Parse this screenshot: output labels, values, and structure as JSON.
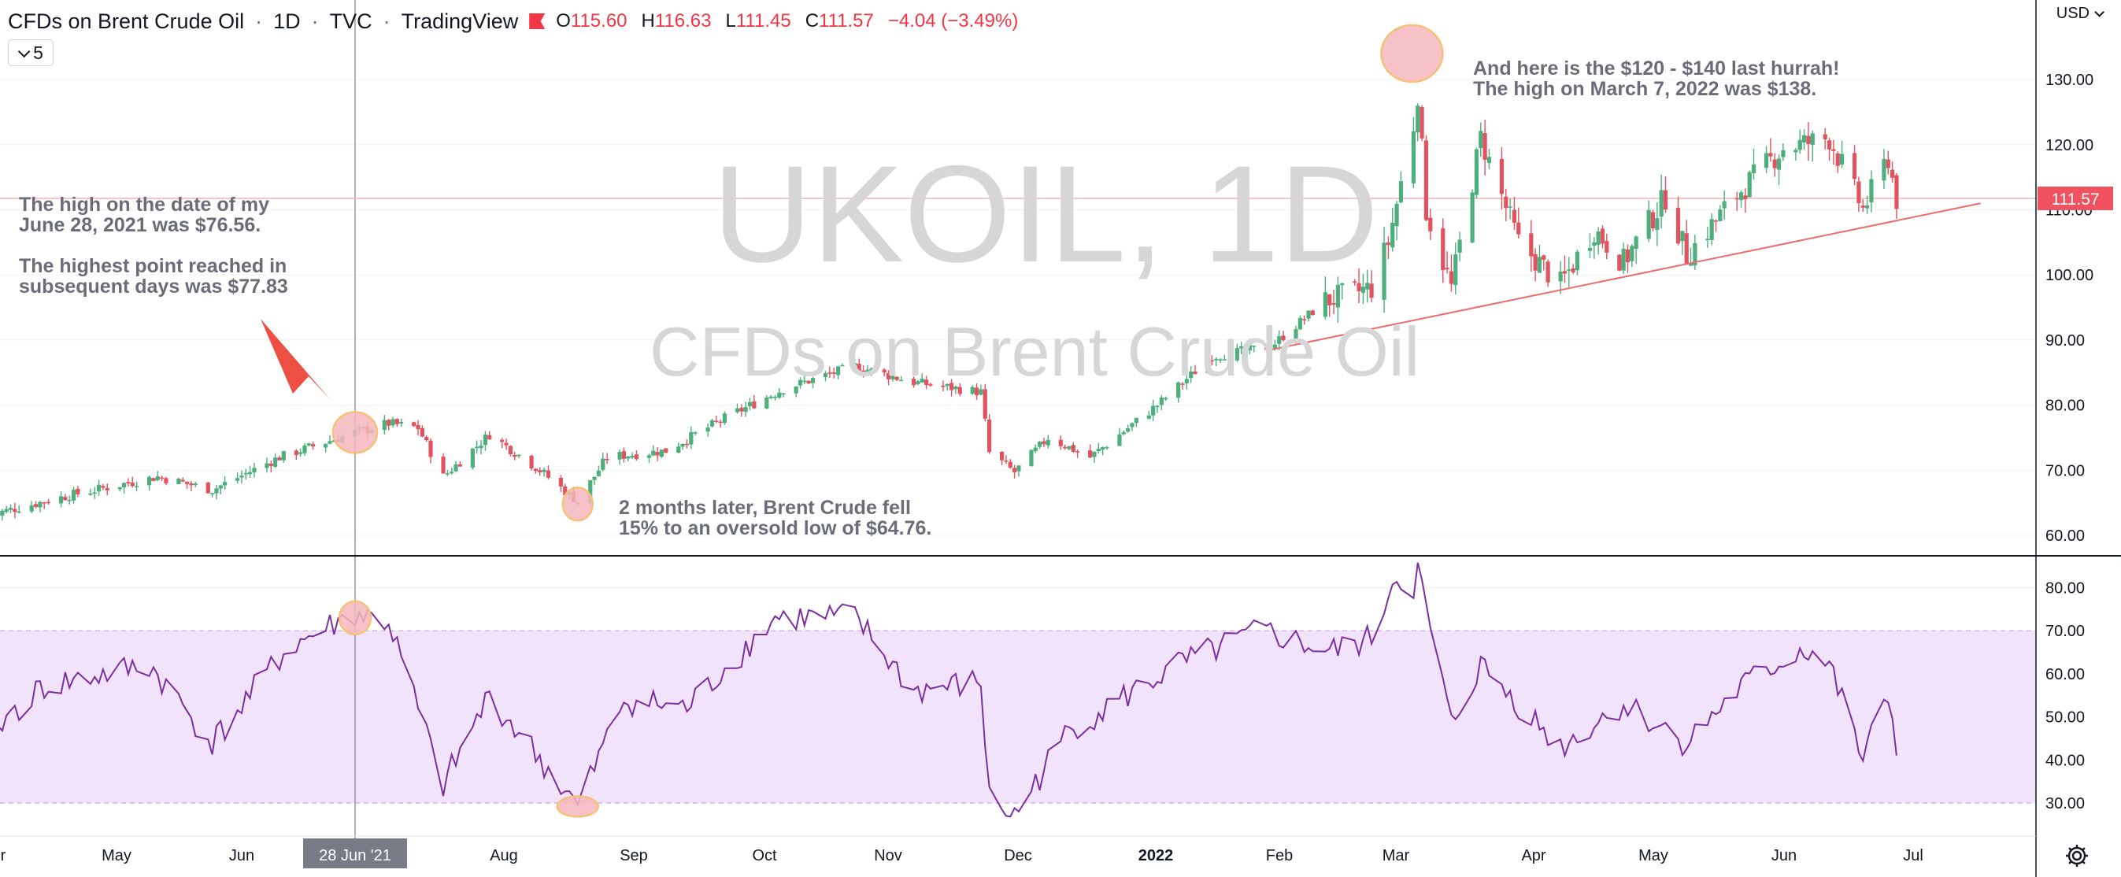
{
  "header": {
    "symbol_desc": "CFDs on Brent Crude Oil",
    "interval": "1D",
    "exchange": "TVC",
    "platform": "TradingView",
    "separator": "·",
    "ohlc": {
      "o_label": "O",
      "o": "115.60",
      "h_label": "H",
      "h": "116.63",
      "l_label": "L",
      "l": "111.45",
      "c_label": "C",
      "c": "111.57",
      "change": "−4.04 (−3.49%)"
    },
    "collapse_count": "5",
    "currency": "USD"
  },
  "watermark": {
    "ticker": "UKOIL, 1D",
    "description": "CFDs on Brent Crude Oil"
  },
  "annotations": {
    "june_high": "The high  on the date of my\nJune 28, 2021 was $76.56.\n\nThe highest point reached in\nsubsequent days was $77.83",
    "aug_low": "2 months later, Brent Crude fell\n15% to an oversold low of $64.76.",
    "march_high": "And here is the $120 - $140 last hurrah!\nThe high on March 7, 2022 was $138."
  },
  "colors": {
    "up": "#4caf7d",
    "down": "#e0535f",
    "rsi_line": "#7b2fa0",
    "rsi_band": "#f1e3fb",
    "trendline": "#ef6b6b",
    "highlight_fill": "#f4b6bd",
    "highlight_stroke": "#f6c177",
    "arrow": "#ee4f43",
    "price_tag": "#f0525f"
  },
  "chart_data": [
    {
      "type": "candlestick",
      "title": "CFDs on Brent Crude Oil · 1D · TVC",
      "y_axis": {
        "ticks": [
          "130.00",
          "120.00",
          "110.00",
          "100.00",
          "90.00",
          "80.00",
          "70.00",
          "60.00"
        ],
        "ylim": [
          57,
          140
        ]
      },
      "last_price": "111.57",
      "x_axis": {
        "ticks": [
          "r",
          "May",
          "Jun",
          "28 Jun '21",
          "Aug",
          "Sep",
          "Oct",
          "Nov",
          "Dec",
          "2022",
          "Feb",
          "Mar",
          "Apr",
          "May",
          "Jun",
          "Jul"
        ],
        "highlighted": "28 Jun '21",
        "bold": "2022"
      },
      "approx_close_path": [
        {
          "date": "2021-04-01",
          "close": 63
        },
        {
          "date": "2021-04-20",
          "close": 66
        },
        {
          "date": "2021-05-12",
          "close": 69
        },
        {
          "date": "2021-05-25",
          "close": 67
        },
        {
          "date": "2021-06-10",
          "close": 72
        },
        {
          "date": "2021-06-28",
          "close": 75.8
        },
        {
          "date": "2021-07-06",
          "close": 77.2
        },
        {
          "date": "2021-07-13",
          "close": 76.5
        },
        {
          "date": "2021-07-19",
          "close": 69
        },
        {
          "date": "2021-07-30",
          "close": 75.5
        },
        {
          "date": "2021-08-10",
          "close": 70.5
        },
        {
          "date": "2021-08-20",
          "close": 65.2
        },
        {
          "date": "2021-08-27",
          "close": 72
        },
        {
          "date": "2021-09-10",
          "close": 73
        },
        {
          "date": "2021-09-24",
          "close": 78
        },
        {
          "date": "2021-10-08",
          "close": 82.5
        },
        {
          "date": "2021-10-25",
          "close": 86
        },
        {
          "date": "2021-11-08",
          "close": 83.5
        },
        {
          "date": "2021-11-24",
          "close": 82
        },
        {
          "date": "2021-11-26",
          "close": 72.7
        },
        {
          "date": "2021-12-02",
          "close": 69.7
        },
        {
          "date": "2021-12-10",
          "close": 75
        },
        {
          "date": "2021-12-20",
          "close": 72
        },
        {
          "date": "2022-01-05",
          "close": 80
        },
        {
          "date": "2022-01-18",
          "close": 87.5
        },
        {
          "date": "2022-02-01",
          "close": 89
        },
        {
          "date": "2022-02-14",
          "close": 96
        },
        {
          "date": "2022-02-25",
          "close": 98
        },
        {
          "date": "2022-03-01",
          "close": 105
        },
        {
          "date": "2022-03-07",
          "close": 123
        },
        {
          "date": "2022-03-08",
          "close": 128
        },
        {
          "date": "2022-03-10",
          "close": 110
        },
        {
          "date": "2022-03-16",
          "close": 98
        },
        {
          "date": "2022-03-23",
          "close": 121
        },
        {
          "date": "2022-04-01",
          "close": 105
        },
        {
          "date": "2022-04-11",
          "close": 98.5
        },
        {
          "date": "2022-04-19",
          "close": 107
        },
        {
          "date": "2022-04-26",
          "close": 102
        },
        {
          "date": "2022-05-06",
          "close": 112
        },
        {
          "date": "2022-05-11",
          "close": 103
        },
        {
          "date": "2022-05-24",
          "close": 113
        },
        {
          "date": "2022-06-03",
          "close": 119.5
        },
        {
          "date": "2022-06-14",
          "close": 121
        },
        {
          "date": "2022-06-22",
          "close": 110
        },
        {
          "date": "2022-06-28",
          "close": 118
        },
        {
          "date": "2022-06-30",
          "close": 111.6
        }
      ],
      "trendline": {
        "from": {
          "date": "2022-02-01",
          "value": 88.5
        },
        "to": {
          "date": "2022-07-20",
          "value": 111
        }
      }
    },
    {
      "type": "line",
      "title": "RSI",
      "y_axis": {
        "ticks": [
          "80.00",
          "70.00",
          "60.00",
          "50.00",
          "40.00",
          "30.00"
        ],
        "ylim": [
          25,
          87
        ]
      },
      "band": [
        30,
        70
      ],
      "approx_path": [
        {
          "date": "2021-04-01",
          "value": 46
        },
        {
          "date": "2021-04-15",
          "value": 57
        },
        {
          "date": "2021-05-10",
          "value": 62
        },
        {
          "date": "2021-05-25",
          "value": 44
        },
        {
          "date": "2021-06-12",
          "value": 66
        },
        {
          "date": "2021-06-28",
          "value": 74
        },
        {
          "date": "2021-07-06",
          "value": 72
        },
        {
          "date": "2021-07-19",
          "value": 34
        },
        {
          "date": "2021-07-30",
          "value": 55
        },
        {
          "date": "2021-08-20",
          "value": 29
        },
        {
          "date": "2021-08-31",
          "value": 54
        },
        {
          "date": "2021-09-15",
          "value": 52
        },
        {
          "date": "2021-10-06",
          "value": 73
        },
        {
          "date": "2021-10-25",
          "value": 73
        },
        {
          "date": "2021-11-08",
          "value": 56
        },
        {
          "date": "2021-11-24",
          "value": 58
        },
        {
          "date": "2021-11-26",
          "value": 31
        },
        {
          "date": "2021-12-02",
          "value": 27
        },
        {
          "date": "2021-12-15",
          "value": 47
        },
        {
          "date": "2022-01-10",
          "value": 62
        },
        {
          "date": "2022-01-30",
          "value": 70
        },
        {
          "date": "2022-02-15",
          "value": 65
        },
        {
          "date": "2022-02-25",
          "value": 68
        },
        {
          "date": "2022-03-03",
          "value": 84
        },
        {
          "date": "2022-03-07",
          "value": 76
        },
        {
          "date": "2022-03-08",
          "value": 84
        },
        {
          "date": "2022-03-16",
          "value": 48
        },
        {
          "date": "2022-03-23",
          "value": 62
        },
        {
          "date": "2022-04-11",
          "value": 43
        },
        {
          "date": "2022-04-26",
          "value": 53
        },
        {
          "date": "2022-05-11",
          "value": 44
        },
        {
          "date": "2022-05-24",
          "value": 57
        },
        {
          "date": "2022-06-08",
          "value": 66
        },
        {
          "date": "2022-06-14",
          "value": 62
        },
        {
          "date": "2022-06-22",
          "value": 40
        },
        {
          "date": "2022-06-28",
          "value": 55
        },
        {
          "date": "2022-06-30",
          "value": 44
        }
      ]
    }
  ]
}
